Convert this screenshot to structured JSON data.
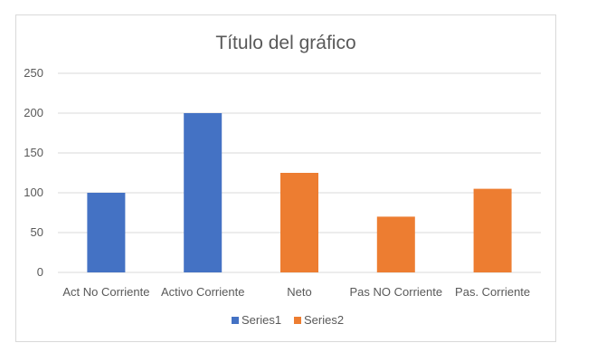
{
  "chart_data": {
    "type": "bar",
    "title": "Título del gráfico",
    "categories": [
      "Act No Corriente",
      "Activo Corriente",
      "Neto",
      "Pas NO Corriente",
      "Pas. Corriente"
    ],
    "series": [
      {
        "name": "Series1",
        "color": "#4472c4",
        "values": [
          100,
          200,
          null,
          null,
          null
        ]
      },
      {
        "name": "Series2",
        "color": "#ed7d31",
        "values": [
          null,
          null,
          125,
          70,
          105
        ]
      }
    ],
    "yticks": [
      0,
      50,
      100,
      150,
      200,
      250
    ],
    "ylim": [
      0,
      250
    ],
    "grid": true,
    "gridColor": "#d9d9d9",
    "legend": "bottom"
  }
}
